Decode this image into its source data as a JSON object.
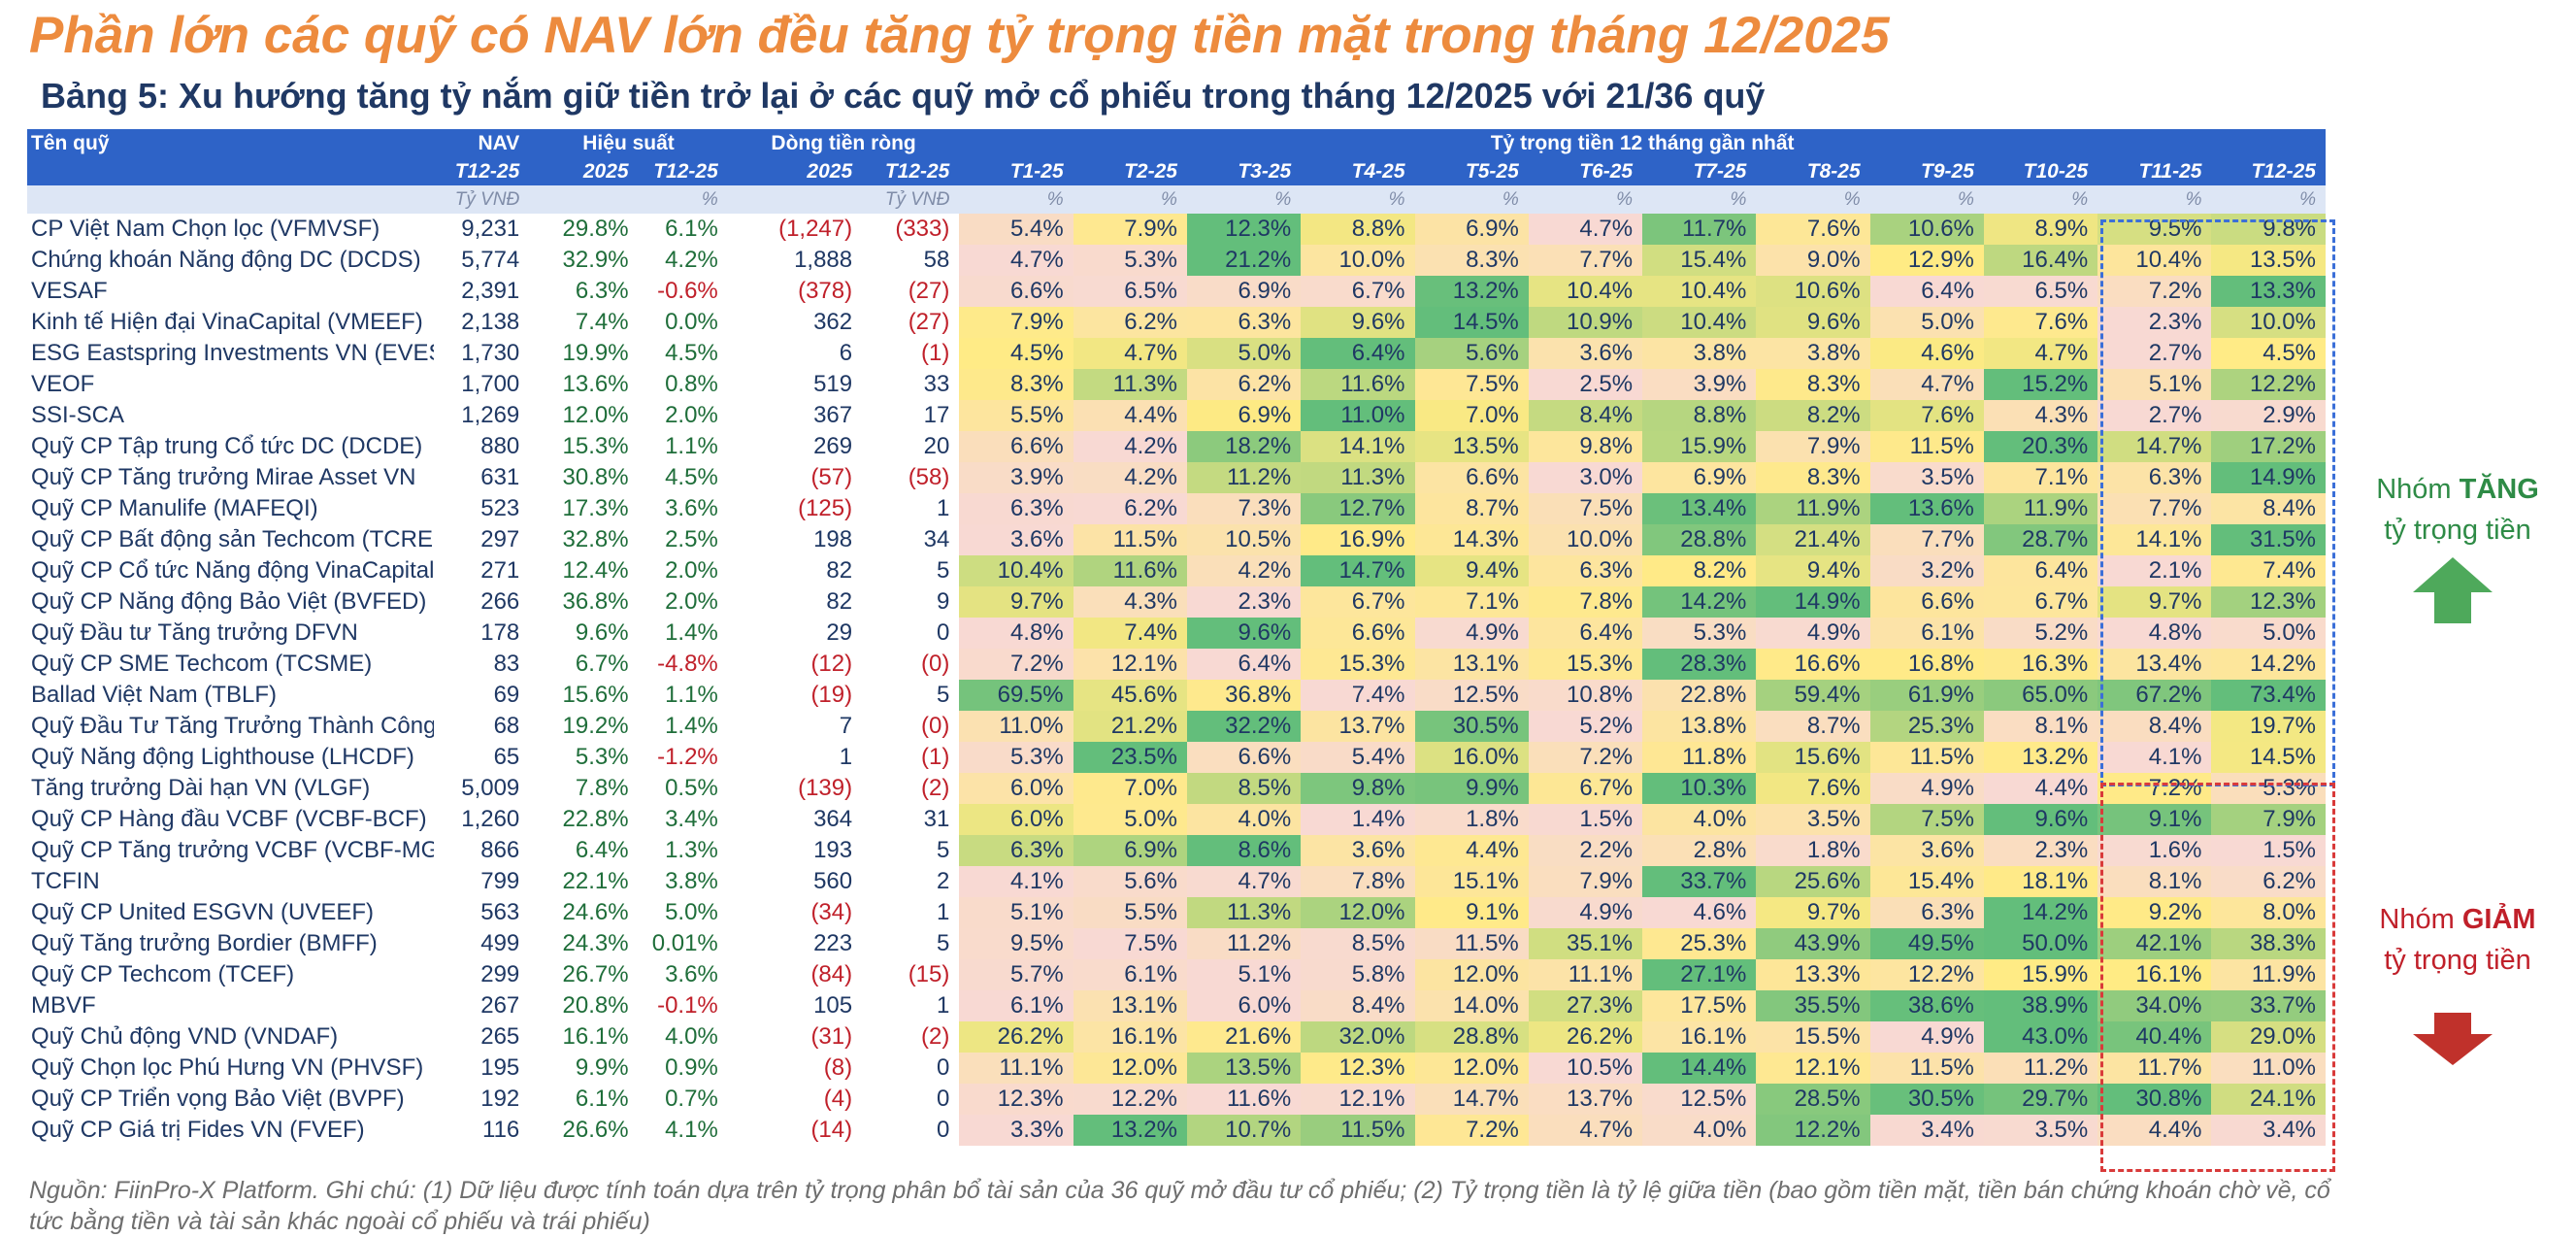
{
  "title": "Phần lớn các quỹ có NAV lớn đều tăng tỷ trọng tiền mặt trong tháng 12/2025",
  "subtitle": "Bảng 5: Xu hướng tăng tỷ nắm giữ tiền trở lại ở các quỹ mở cổ phiếu trong tháng 12/2025 với 21/36 quỹ",
  "header": {
    "fund": "Tên quỹ",
    "nav": "NAV",
    "performance": "Hiệu suất",
    "flows": "Dòng tiền ròng",
    "cash_weight": "Tỷ trọng tiền 12 tháng gần nhất",
    "nav_period": "T12-25",
    "perf_2025": "2025",
    "perf_t12": "T12-25",
    "flow_2025": "2025",
    "flow_t12": "T12-25",
    "months": [
      "T1-25",
      "T2-25",
      "T3-25",
      "T4-25",
      "T5-25",
      "T6-25",
      "T7-25",
      "T8-25",
      "T9-25",
      "T10-25",
      "T11-25",
      "T12-25"
    ]
  },
  "units": {
    "nav": "Tỷ VNĐ",
    "perf_2025": "",
    "perf_t12": "%",
    "flow_2025": "",
    "flow_t12": "Tỷ VNĐ",
    "months": [
      "%",
      "%",
      "%",
      "%",
      "%",
      "%",
      "%",
      "%",
      "%",
      "%",
      "%",
      "%"
    ]
  },
  "colors": {
    "high": "#63BE7B",
    "mid": "#FFEB84",
    "low": "#F8D9D3",
    "header": "#2E63C7",
    "increase_group": "#2E8B46",
    "decrease_group": "#C0202A"
  },
  "rows": [
    {
      "name": "CP Việt Nam Chọn lọc (VFMVSF)",
      "nav": "9,231",
      "p2025": "29.8%",
      "pt12": "6.1%",
      "f2025": "(1,247)",
      "ft12": "(333)",
      "cash": [
        5.4,
        7.9,
        12.3,
        8.8,
        6.9,
        4.7,
        11.7,
        7.6,
        10.6,
        8.9,
        9.5,
        9.8
      ]
    },
    {
      "name": "Chứng khoán Năng động DC (DCDS)",
      "nav": "5,774",
      "p2025": "32.9%",
      "pt12": "4.2%",
      "f2025": "1,888",
      "ft12": "58",
      "cash": [
        4.7,
        5.3,
        21.2,
        10.0,
        8.3,
        7.7,
        15.4,
        9.0,
        12.9,
        16.4,
        10.4,
        13.5
      ]
    },
    {
      "name": "VESAF",
      "nav": "2,391",
      "p2025": "6.3%",
      "pt12": "-0.6%",
      "f2025": "(378)",
      "ft12": "(27)",
      "cash": [
        6.6,
        6.5,
        6.9,
        6.7,
        13.2,
        10.4,
        10.4,
        10.6,
        6.4,
        6.5,
        7.2,
        13.3
      ]
    },
    {
      "name": "Kinh tế Hiện đại VinaCapital (VMEEF)",
      "nav": "2,138",
      "p2025": "7.4%",
      "pt12": "0.0%",
      "f2025": "362",
      "ft12": "(27)",
      "cash": [
        7.9,
        6.2,
        6.3,
        9.6,
        14.5,
        10.9,
        10.4,
        9.6,
        5.0,
        7.6,
        2.3,
        10.0
      ]
    },
    {
      "name": "ESG Eastspring Investments VN (EVESG)",
      "nav": "1,730",
      "p2025": "19.9%",
      "pt12": "4.5%",
      "f2025": "6",
      "ft12": "(1)",
      "cash": [
        4.5,
        4.7,
        5.0,
        6.4,
        5.6,
        3.6,
        3.8,
        3.8,
        4.6,
        4.7,
        2.7,
        4.5
      ]
    },
    {
      "name": "VEOF",
      "nav": "1,700",
      "p2025": "13.6%",
      "pt12": "0.8%",
      "f2025": "519",
      "ft12": "33",
      "cash": [
        8.3,
        11.3,
        6.2,
        11.6,
        7.5,
        2.5,
        3.9,
        8.3,
        4.7,
        15.2,
        5.1,
        12.2
      ]
    },
    {
      "name": "SSI-SCA",
      "nav": "1,269",
      "p2025": "12.0%",
      "pt12": "2.0%",
      "f2025": "367",
      "ft12": "17",
      "cash": [
        5.5,
        4.4,
        6.9,
        11.0,
        7.0,
        8.4,
        8.8,
        8.2,
        7.6,
        4.3,
        2.7,
        2.9
      ]
    },
    {
      "name": "Quỹ CP Tập trung Cổ tức DC (DCDE)",
      "nav": "880",
      "p2025": "15.3%",
      "pt12": "1.1%",
      "f2025": "269",
      "ft12": "20",
      "cash": [
        6.6,
        4.2,
        18.2,
        14.1,
        13.5,
        9.8,
        15.9,
        7.9,
        11.5,
        20.3,
        14.7,
        17.2
      ]
    },
    {
      "name": "Quỹ CP Tăng trưởng Mirae Asset VN",
      "nav": "631",
      "p2025": "30.8%",
      "pt12": "4.5%",
      "f2025": "(57)",
      "ft12": "(58)",
      "cash": [
        3.9,
        4.2,
        11.2,
        11.3,
        6.6,
        3.0,
        6.9,
        8.3,
        3.5,
        7.1,
        6.3,
        14.9
      ]
    },
    {
      "name": "Quỹ CP Manulife (MAFEQI)",
      "nav": "523",
      "p2025": "17.3%",
      "pt12": "3.6%",
      "f2025": "(125)",
      "ft12": "1",
      "cash": [
        6.3,
        6.2,
        7.3,
        12.7,
        8.7,
        7.5,
        13.4,
        11.9,
        13.6,
        11.9,
        7.7,
        8.4
      ]
    },
    {
      "name": "Quỹ CP Bất động sản Techcom (TCRES)",
      "nav": "297",
      "p2025": "32.8%",
      "pt12": "2.5%",
      "f2025": "198",
      "ft12": "34",
      "cash": [
        3.6,
        11.5,
        10.5,
        16.9,
        14.3,
        10.0,
        28.8,
        21.4,
        7.7,
        28.7,
        14.1,
        31.5
      ]
    },
    {
      "name": "Quỹ CP Cổ tức Năng động VinaCapital",
      "nav": "271",
      "p2025": "12.4%",
      "pt12": "2.0%",
      "f2025": "82",
      "ft12": "5",
      "cash": [
        10.4,
        11.6,
        4.2,
        14.7,
        9.4,
        6.3,
        8.2,
        9.4,
        3.2,
        6.4,
        2.1,
        7.4
      ]
    },
    {
      "name": "Quỹ CP Năng động Bảo Việt (BVFED)",
      "nav": "266",
      "p2025": "36.8%",
      "pt12": "2.0%",
      "f2025": "82",
      "ft12": "9",
      "cash": [
        9.7,
        4.3,
        2.3,
        6.7,
        7.1,
        7.8,
        14.2,
        14.9,
        6.6,
        6.7,
        9.7,
        12.3
      ]
    },
    {
      "name": "Quỹ Đầu tư Tăng trưởng DFVN",
      "nav": "178",
      "p2025": "9.6%",
      "pt12": "1.4%",
      "f2025": "29",
      "ft12": "0",
      "cash": [
        4.8,
        7.4,
        9.6,
        6.6,
        4.9,
        6.4,
        5.3,
        4.9,
        6.1,
        5.2,
        4.8,
        5.0
      ]
    },
    {
      "name": "Quỹ CP SME Techcom (TCSME)",
      "nav": "83",
      "p2025": "6.7%",
      "pt12": "-4.8%",
      "f2025": "(12)",
      "ft12": "(0)",
      "cash": [
        7.2,
        12.1,
        6.4,
        15.3,
        13.1,
        15.3,
        28.3,
        16.6,
        16.8,
        16.3,
        13.4,
        14.2
      ]
    },
    {
      "name": "Ballad Việt Nam (TBLF)",
      "nav": "69",
      "p2025": "15.6%",
      "pt12": "1.1%",
      "f2025": "(19)",
      "ft12": "5",
      "cash": [
        69.5,
        45.6,
        36.8,
        7.4,
        12.5,
        10.8,
        22.8,
        59.4,
        61.9,
        65.0,
        67.2,
        73.4
      ]
    },
    {
      "name": "Quỹ Đầu Tư Tăng Trưởng Thành Công",
      "nav": "68",
      "p2025": "19.2%",
      "pt12": "1.4%",
      "f2025": "7",
      "ft12": "(0)",
      "cash": [
        11.0,
        21.2,
        32.2,
        13.7,
        30.5,
        5.2,
        13.8,
        8.7,
        25.3,
        8.1,
        8.4,
        19.7
      ]
    },
    {
      "name": "Quỹ Năng động Lighthouse (LHCDF)",
      "nav": "65",
      "p2025": "5.3%",
      "pt12": "-1.2%",
      "f2025": "1",
      "ft12": "(1)",
      "cash": [
        5.3,
        23.5,
        6.6,
        5.4,
        16.0,
        7.2,
        11.8,
        15.6,
        11.5,
        13.2,
        4.1,
        14.5
      ]
    },
    {
      "name": "Tăng trưởng Dài hạn VN (VLGF)",
      "nav": "5,009",
      "p2025": "7.8%",
      "pt12": "0.5%",
      "f2025": "(139)",
      "ft12": "(2)",
      "cash": [
        6.0,
        7.0,
        8.5,
        9.8,
        9.9,
        6.7,
        10.3,
        7.6,
        4.9,
        4.4,
        7.2,
        5.3
      ]
    },
    {
      "name": "Quỹ CP Hàng đầu VCBF (VCBF-BCF)",
      "nav": "1,260",
      "p2025": "22.8%",
      "pt12": "3.4%",
      "f2025": "364",
      "ft12": "31",
      "cash": [
        6.0,
        5.0,
        4.0,
        1.4,
        1.8,
        1.5,
        4.0,
        3.5,
        7.5,
        9.6,
        9.1,
        7.9
      ]
    },
    {
      "name": "Quỹ CP Tăng trưởng VCBF (VCBF-MGF)",
      "nav": "866",
      "p2025": "6.4%",
      "pt12": "1.3%",
      "f2025": "193",
      "ft12": "5",
      "cash": [
        6.3,
        6.9,
        8.6,
        3.6,
        4.4,
        2.2,
        2.8,
        1.8,
        3.6,
        2.3,
        1.6,
        1.5
      ]
    },
    {
      "name": "TCFIN",
      "nav": "799",
      "p2025": "22.1%",
      "pt12": "3.8%",
      "f2025": "560",
      "ft12": "2",
      "cash": [
        4.1,
        5.6,
        4.7,
        7.8,
        15.1,
        7.9,
        33.7,
        25.6,
        15.4,
        18.1,
        8.1,
        6.2
      ]
    },
    {
      "name": "Quỹ CP United ESGVN (UVEEF)",
      "nav": "563",
      "p2025": "24.6%",
      "pt12": "5.0%",
      "f2025": "(34)",
      "ft12": "1",
      "cash": [
        5.1,
        5.5,
        11.3,
        12.0,
        9.1,
        4.9,
        4.6,
        9.7,
        6.3,
        14.2,
        9.2,
        8.0
      ]
    },
    {
      "name": "Quỹ Tăng trưởng Bordier (BMFF)",
      "nav": "499",
      "p2025": "24.3%",
      "pt12": "0.01%",
      "f2025": "223",
      "ft12": "5",
      "cash": [
        9.5,
        7.5,
        11.2,
        8.5,
        11.5,
        35.1,
        25.3,
        43.9,
        49.5,
        50.0,
        42.1,
        38.3
      ]
    },
    {
      "name": "Quỹ CP Techcom (TCEF)",
      "nav": "299",
      "p2025": "26.7%",
      "pt12": "3.6%",
      "f2025": "(84)",
      "ft12": "(15)",
      "cash": [
        5.7,
        6.1,
        5.1,
        5.8,
        12.0,
        11.1,
        27.1,
        13.3,
        12.2,
        15.9,
        16.1,
        11.9
      ]
    },
    {
      "name": "MBVF",
      "nav": "267",
      "p2025": "20.8%",
      "pt12": "-0.1%",
      "f2025": "105",
      "ft12": "1",
      "cash": [
        6.1,
        13.1,
        6.0,
        8.4,
        14.0,
        27.3,
        17.5,
        35.5,
        38.6,
        38.9,
        34.0,
        33.7
      ]
    },
    {
      "name": "Quỹ Chủ động VND (VNDAF)",
      "nav": "265",
      "p2025": "16.1%",
      "pt12": "4.0%",
      "f2025": "(31)",
      "ft12": "(2)",
      "cash": [
        26.2,
        16.1,
        21.6,
        32.0,
        28.8,
        26.2,
        16.1,
        15.5,
        4.9,
        43.0,
        40.4,
        29.0
      ]
    },
    {
      "name": "Quỹ Chọn lọc Phú Hưng VN (PHVSF)",
      "nav": "195",
      "p2025": "9.9%",
      "pt12": "0.9%",
      "f2025": "(8)",
      "ft12": "0",
      "cash": [
        11.1,
        12.0,
        13.5,
        12.3,
        12.0,
        10.5,
        14.4,
        12.1,
        11.5,
        11.2,
        11.7,
        11.0
      ]
    },
    {
      "name": "Quỹ CP Triển vọng Bảo Việt (BVPF)",
      "nav": "192",
      "p2025": "6.1%",
      "pt12": "0.7%",
      "f2025": "(4)",
      "ft12": "0",
      "cash": [
        12.3,
        12.2,
        11.6,
        12.1,
        14.7,
        13.7,
        12.5,
        28.5,
        30.5,
        29.7,
        30.8,
        24.1
      ]
    },
    {
      "name": "Quỹ CP Giá trị Fides VN (FVEF)",
      "nav": "116",
      "p2025": "26.6%",
      "pt12": "4.1%",
      "f2025": "(14)",
      "ft12": "0",
      "cash": [
        3.3,
        13.2,
        10.7,
        11.5,
        7.2,
        4.7,
        4.0,
        12.2,
        3.4,
        3.5,
        4.4,
        3.4
      ]
    }
  ],
  "groups": {
    "increase": {
      "prefix": "Nhóm ",
      "strong": "TĂNG",
      "suffix": "tỷ trọng tiền",
      "icon": "arrow-up-icon"
    },
    "decrease": {
      "prefix": "Nhóm ",
      "strong": "GIẢM",
      "suffix": "tỷ trọng tiền",
      "icon": "arrow-down-icon"
    }
  },
  "footnote": "Nguồn: FiinPro-X Platform. Ghi chú: (1) Dữ liệu được tính toán dựa trên tỷ trọng phân bổ tài sản của 36 quỹ mở đầu tư cổ phiếu; (2) Tỷ trọng tiền là tỷ lệ giữa tiền (bao gồm tiền mặt, tiền bán chứng khoán chờ về, cổ tức bằng tiền và tài sản khác ngoài cổ phiếu và trái phiếu)"
}
